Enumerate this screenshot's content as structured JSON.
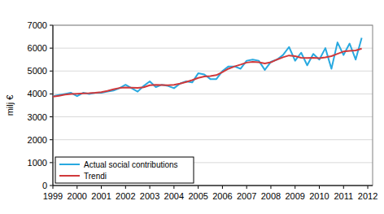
{
  "chart_data": {
    "type": "line",
    "y_label": "milj €",
    "x": [
      1999,
      1999.25,
      1999.5,
      1999.75,
      2000,
      2000.25,
      2000.5,
      2000.75,
      2001,
      2001.25,
      2001.5,
      2001.75,
      2002,
      2002.25,
      2002.5,
      2002.75,
      2003,
      2003.25,
      2003.5,
      2003.75,
      2004,
      2004.25,
      2004.5,
      2004.75,
      2005,
      2005.25,
      2005.5,
      2005.75,
      2006,
      2006.25,
      2006.5,
      2006.75,
      2007,
      2007.25,
      2007.5,
      2007.75,
      2008,
      2008.25,
      2008.5,
      2008.75,
      2009,
      2009.25,
      2009.5,
      2009.75,
      2010,
      2010.25,
      2010.5,
      2010.75,
      2011,
      2011.25,
      2011.5,
      2011.75
    ],
    "series": [
      {
        "name": "Actual social contributions",
        "color": "#29a9e0",
        "values": [
          3900,
          3950,
          4000,
          4050,
          3900,
          4050,
          4000,
          4050,
          4050,
          4100,
          4150,
          4250,
          4400,
          4250,
          4100,
          4350,
          4550,
          4300,
          4400,
          4350,
          4250,
          4450,
          4550,
          4500,
          4900,
          4850,
          4650,
          4650,
          5000,
          5200,
          5200,
          5100,
          5450,
          5500,
          5450,
          5050,
          5400,
          5500,
          5700,
          6050,
          5450,
          5800,
          5250,
          5750,
          5500,
          6000,
          5100,
          6250,
          5700,
          6200,
          5500,
          6450
        ]
      },
      {
        "name": "Trendi",
        "color": "#d0393b",
        "values": [
          3880,
          3920,
          3970,
          4000,
          4010,
          4020,
          4030,
          4050,
          4080,
          4130,
          4200,
          4260,
          4280,
          4270,
          4260,
          4290,
          4380,
          4400,
          4390,
          4380,
          4400,
          4450,
          4520,
          4600,
          4700,
          4760,
          4780,
          4820,
          4950,
          5100,
          5200,
          5280,
          5370,
          5400,
          5380,
          5330,
          5380,
          5500,
          5600,
          5680,
          5650,
          5580,
          5570,
          5580,
          5560,
          5600,
          5650,
          5750,
          5850,
          5880,
          5900,
          5980
        ]
      }
    ],
    "xlim": [
      1999,
      2012.2
    ],
    "xticks": [
      1999,
      2000,
      2001,
      2002,
      2003,
      2004,
      2005,
      2006,
      2007,
      2008,
      2009,
      2010,
      2011,
      2012
    ],
    "ylim": [
      0,
      7000
    ],
    "yticks": [
      0,
      1000,
      2000,
      3000,
      4000,
      5000,
      6000,
      7000
    ],
    "grid": true,
    "legend": "lower left"
  }
}
